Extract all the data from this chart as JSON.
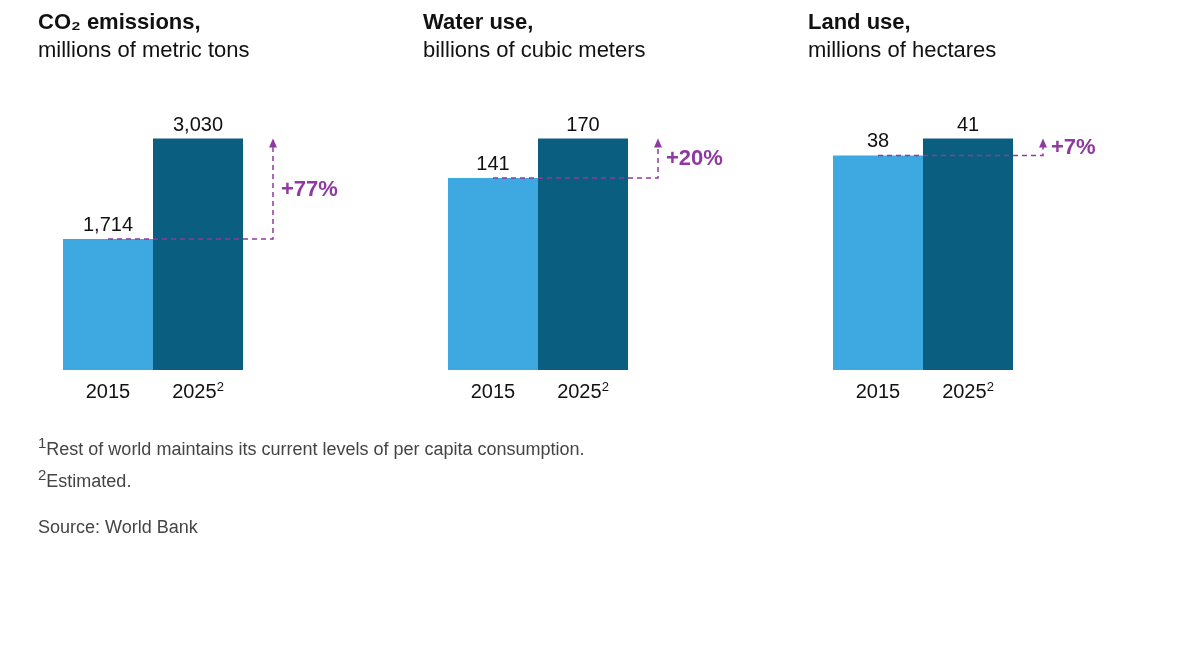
{
  "chart_data": [
    {
      "type": "bar",
      "title": "CO₂ emissions,",
      "subtitle": "millions of metric tons",
      "categories": [
        "2015",
        "2025$^{2}$"
      ],
      "values": [
        1714,
        3030
      ],
      "colors": [
        "#3ea8e0",
        "#0a5e80"
      ],
      "value_labels": [
        "1,714",
        "3,030"
      ],
      "annotations": [
        "+77%"
      ]
    },
    {
      "type": "bar",
      "title": "Water use,",
      "subtitle": "billions of cubic meters",
      "categories": [
        "2015",
        "2025$^{2}$"
      ],
      "values": [
        141,
        170
      ],
      "colors": [
        "#3ea8e0",
        "#0a5e80"
      ],
      "value_labels": [
        "141",
        "170"
      ],
      "annotations": [
        "+20%"
      ]
    },
    {
      "type": "bar",
      "title": "Land use,",
      "subtitle": "millions of hectares",
      "categories": [
        "2015",
        "2025$^{2}$"
      ],
      "values": [
        38,
        41
      ],
      "colors": [
        "#3ea8e0",
        "#0a5e80"
      ],
      "value_labels": [
        "38",
        "41"
      ],
      "annotations": [
        "+7%",
        "$^{1}$Rest of world maintains its current levels of per capita consumption.",
        "$^{2}$Estimated.",
        "Source: World Bank"
      ]
    }
  ]
}
